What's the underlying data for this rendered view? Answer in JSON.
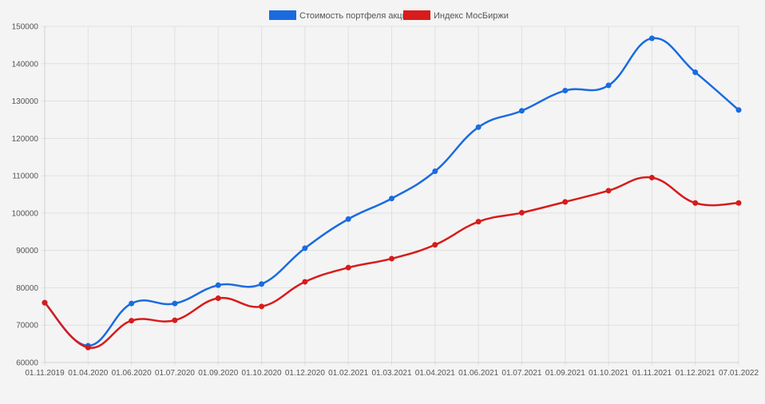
{
  "chart_data": {
    "type": "line",
    "title": "",
    "xlabel": "",
    "ylabel": "",
    "categories": [
      "01.11.2019",
      "01.04.2020",
      "01.06.2020",
      "01.07.2020",
      "01.09.2020",
      "01.10.2020",
      "01.12.2020",
      "01.02.2021",
      "01.03.2021",
      "01.04.2021",
      "01.06.2021",
      "01.07.2021",
      "01.09.2021",
      "01.10.2021",
      "01.11.2021",
      "01.12.2021",
      "07.01.2022"
    ],
    "ylim": [
      60000,
      150000
    ],
    "yticks": [
      "150000",
      "140000",
      "130000",
      "120000",
      "110000",
      "100000",
      "90000",
      "80000",
      "70000",
      "60000"
    ],
    "grid": true,
    "legend_position": "top-center",
    "series": [
      {
        "name": "Стоимость портфеля акций",
        "color": "#1a6be0",
        "values": [
          76000,
          64500,
          75800,
          75800,
          80700,
          81000,
          90600,
          98400,
          103900,
          111200,
          123000,
          127400,
          132800,
          134200,
          146800,
          137700,
          127600
        ]
      },
      {
        "name": "Индекс МосБиржи",
        "color": "#d81b1b",
        "values": [
          76000,
          64000,
          71200,
          71300,
          77200,
          75000,
          81600,
          85400,
          87800,
          91500,
          97700,
          100100,
          103000,
          106000,
          109500,
          102700,
          102700
        ]
      }
    ]
  }
}
